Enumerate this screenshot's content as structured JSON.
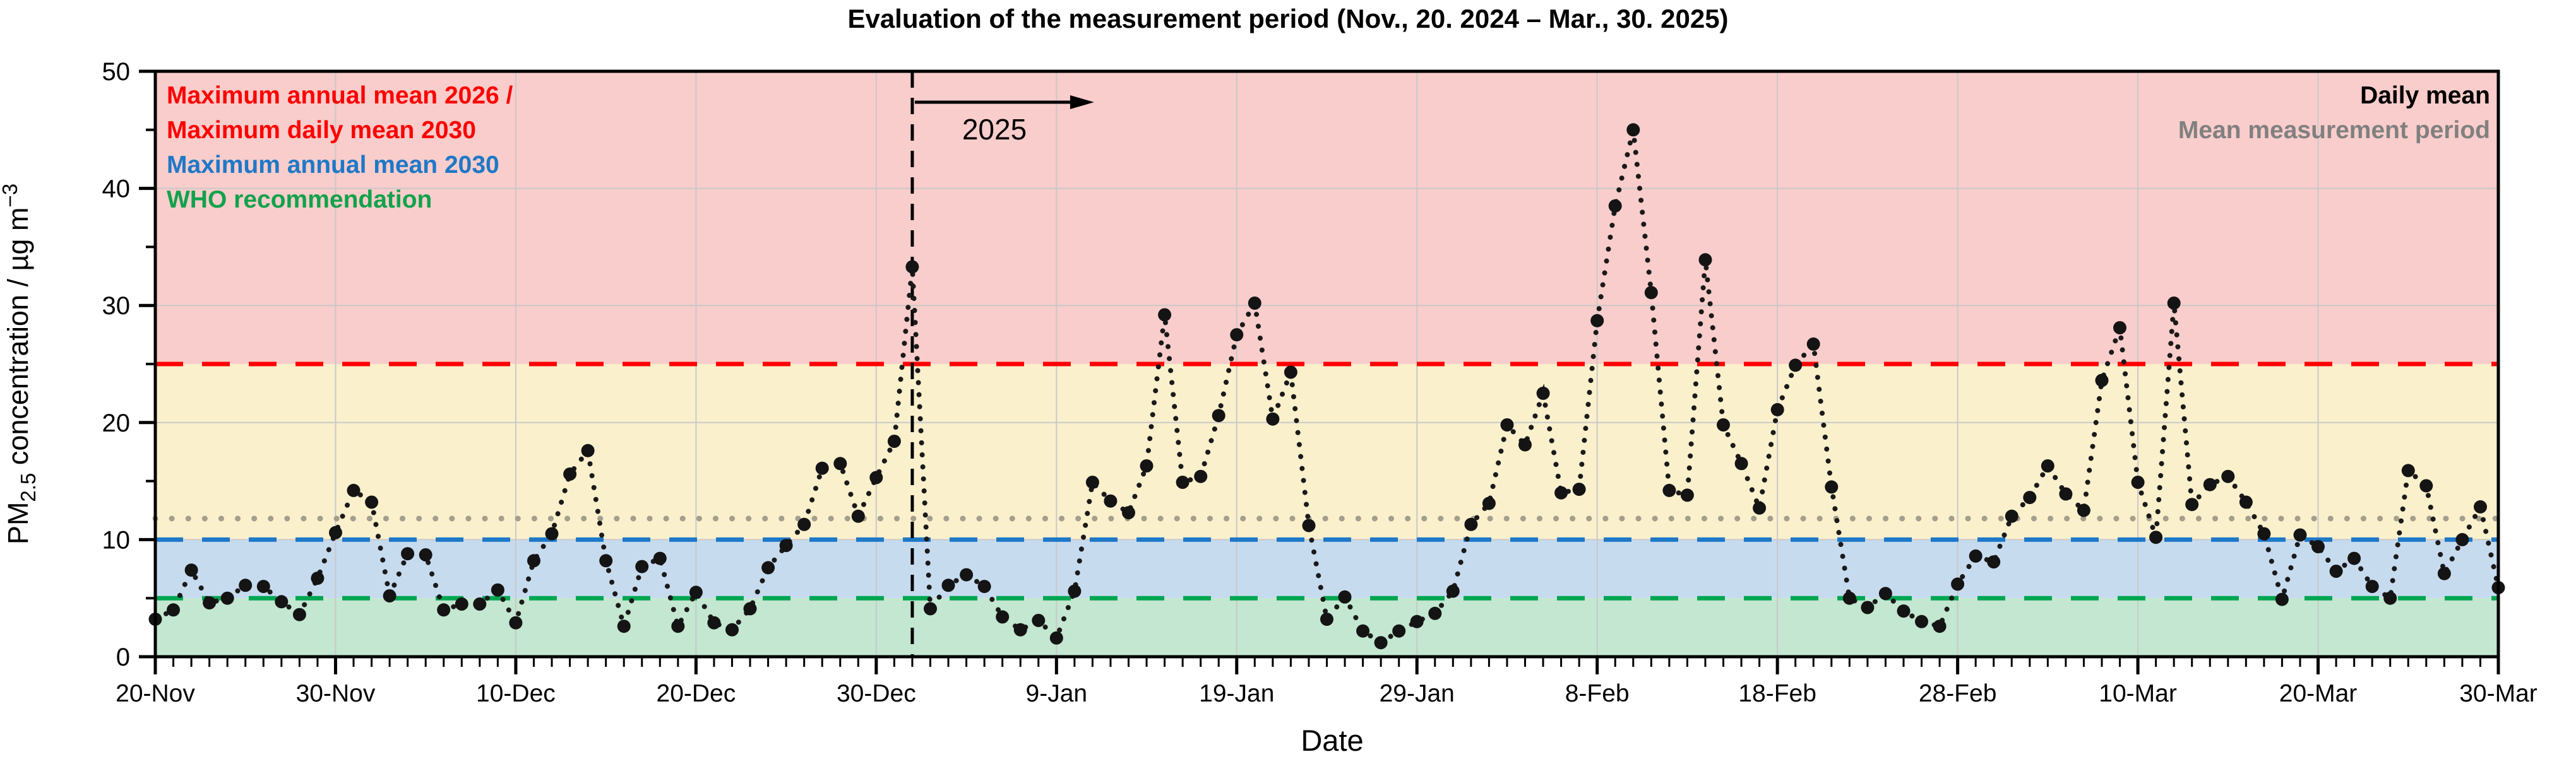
{
  "title": "Evaluation of the measurement period (Nov., 20. 2024 – Mar., 30. 2025)",
  "legend_left": {
    "items": [
      {
        "text": "Maximum annual mean 2026 /",
        "color": "#FF0000"
      },
      {
        "text": "Maximum daily mean 2030",
        "color": "#FF0000"
      },
      {
        "text": "Maximum annual mean 2030",
        "color": "#1E78C8"
      },
      {
        "text": "WHO recommendation",
        "color": "#10A24C"
      }
    ]
  },
  "legend_right": {
    "items": [
      {
        "text": "Daily mean",
        "color": "#000000"
      },
      {
        "text": "Mean measurement period",
        "color": "#808080"
      }
    ]
  },
  "chart_data": {
    "type": "line",
    "title": "Evaluation of the measurement period (Nov., 20. 2024 – Mar., 30. 2025)",
    "xlabel": "Date",
    "ylabel": "PM2.5 concentration / µg m−3",
    "ylabel_parts": {
      "prefix": "PM",
      "sub": "2.5",
      "mid": " concentration / µg m",
      "sup": "−3"
    },
    "ylim": [
      0,
      50
    ],
    "y_ticks": [
      0,
      10,
      20,
      30,
      40,
      50
    ],
    "y_minor_ticks": [
      5,
      15,
      25,
      35,
      45
    ],
    "x_tick_labels": [
      "20-Nov",
      "30-Nov",
      "10-Dec",
      "20-Dec",
      "30-Dec",
      "9-Jan",
      "19-Jan",
      "29-Jan",
      "8-Feb",
      "18-Feb",
      "28-Feb",
      "10-Mar",
      "20-Mar",
      "30-Mar"
    ],
    "x_tick_days": [
      0,
      10,
      20,
      30,
      40,
      50,
      60,
      70,
      80,
      90,
      100,
      110,
      120,
      130
    ],
    "n_days": 131,
    "grid": true,
    "bands": [
      {
        "name": "above-daily-limit",
        "from": 25,
        "to": 50,
        "color": "#F9CDCB"
      },
      {
        "name": "between-10-and-25",
        "from": 10,
        "to": 25,
        "color": "#FAF0CC"
      },
      {
        "name": "between-5-and-10",
        "from": 5,
        "to": 10,
        "color": "#C7DBEF"
      },
      {
        "name": "below-who",
        "from": 0,
        "to": 5,
        "color": "#C3E7D0"
      }
    ],
    "reference_lines": [
      {
        "name": "max-annual-2026-max-daily-2030",
        "label": "Maximum annual mean 2026 / Maximum daily mean 2030",
        "value": 25,
        "color": "#FF0000",
        "style": "dashed"
      },
      {
        "name": "max-annual-2030",
        "label": "Maximum annual mean 2030",
        "value": 10,
        "color": "#1E78C8",
        "style": "dashed"
      },
      {
        "name": "who-recommendation",
        "label": "WHO recommendation",
        "value": 5,
        "color": "#00A651",
        "style": "dashed"
      },
      {
        "name": "mean-measurement-period",
        "label": "Mean measurement period",
        "value": 11.8,
        "color": "#A49E8C",
        "style": "dotted"
      }
    ],
    "year_divider": {
      "day": 42,
      "label": "2025"
    },
    "series": [
      {
        "name": "Daily mean",
        "color": "#1a1a1a",
        "start_label": "20-Nov",
        "end_label": "30-Mar",
        "values": [
          3.2,
          4.0,
          7.4,
          4.6,
          5.0,
          6.1,
          6.0,
          4.7,
          3.6,
          6.7,
          10.6,
          14.2,
          13.2,
          5.2,
          8.8,
          8.7,
          4.0,
          4.5,
          4.5,
          5.7,
          2.9,
          8.2,
          10.5,
          15.6,
          17.6,
          8.2,
          2.6,
          7.7,
          8.4,
          2.6,
          5.5,
          2.9,
          2.3,
          4.1,
          7.6,
          9.5,
          11.3,
          16.1,
          16.5,
          12.0,
          15.3,
          18.4,
          33.3,
          4.1,
          6.1,
          7.0,
          6.0,
          3.4,
          2.3,
          3.1,
          1.6,
          5.6,
          14.9,
          13.3,
          12.3,
          16.3,
          29.2,
          14.9,
          15.4,
          20.6,
          27.5,
          30.2,
          20.3,
          24.3,
          11.2,
          3.2,
          5.1,
          2.2,
          1.2,
          2.2,
          3.0,
          3.7,
          5.6,
          11.3,
          13.1,
          19.8,
          18.1,
          22.5,
          14.0,
          14.3,
          28.7,
          38.5,
          45.0,
          31.1,
          14.2,
          13.8,
          33.9,
          19.8,
          16.5,
          12.7,
          21.1,
          24.9,
          26.7,
          14.5,
          5.0,
          4.2,
          5.4,
          3.9,
          3.0,
          2.6,
          6.2,
          8.6,
          8.1,
          12.0,
          13.6,
          16.3,
          13.9,
          12.5,
          23.6,
          28.1,
          14.9,
          10.2,
          30.2,
          13.0,
          14.7,
          15.4,
          13.2,
          10.5,
          4.9,
          10.4,
          9.4,
          7.3,
          8.4,
          6.0,
          5.0,
          15.9,
          14.6,
          7.1,
          10.0,
          12.8,
          5.9
        ]
      }
    ]
  }
}
